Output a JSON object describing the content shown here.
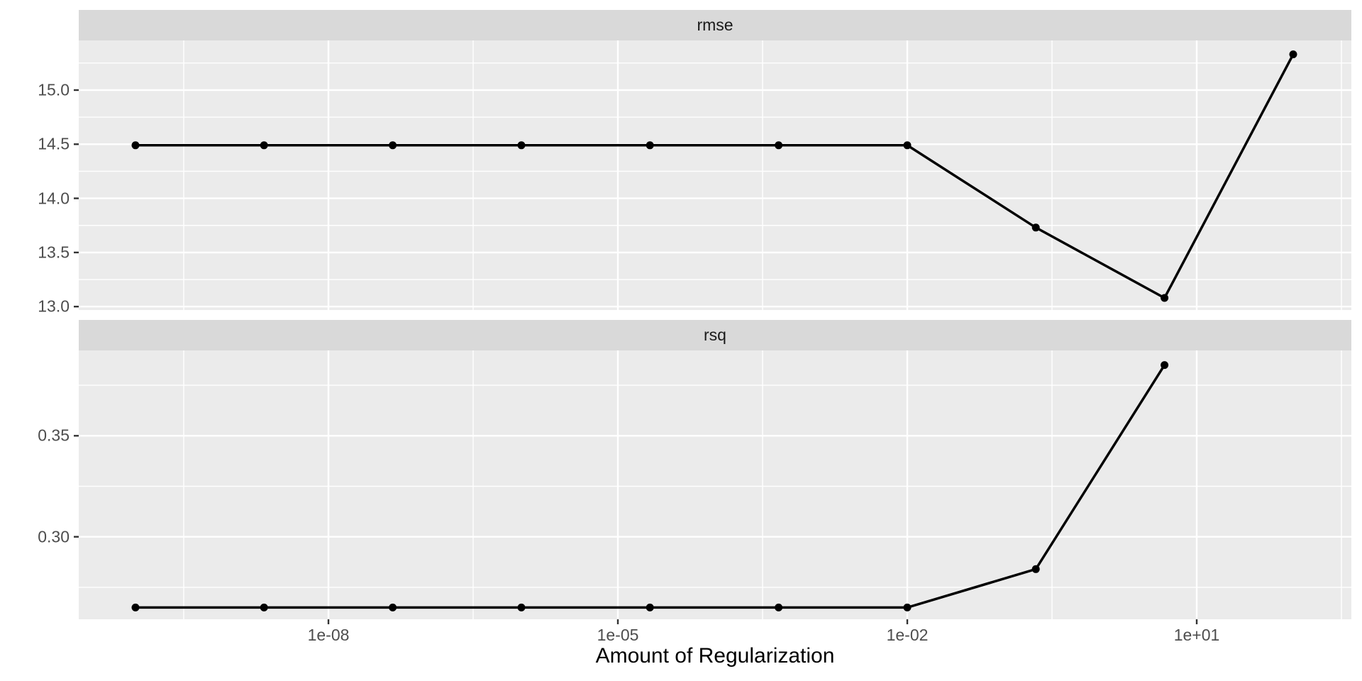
{
  "figure": {
    "kind": "ggplot2 faceted line chart",
    "background": "#FFFFFF"
  },
  "chart_data": {
    "type": "line",
    "title": "",
    "xlabel": "Amount of Regularization",
    "ylabel": "",
    "x_scale": "log10",
    "x": [
      1e-10,
      2.15e-09,
      4.64e-08,
      1e-06,
      2.15e-05,
      0.000464,
      0.01,
      0.215,
      4.64,
      100
    ],
    "x_ticks": {
      "labels": [
        "1e-08",
        "1e-05",
        "1e-02",
        "1e+01"
      ],
      "values": [
        1e-08,
        1e-05,
        0.01,
        10
      ]
    },
    "xlim_log10": [
      -10.6,
      2.6
    ],
    "facets": [
      {
        "label": "rmse",
        "values": [
          14.49,
          14.49,
          14.49,
          14.49,
          14.49,
          14.49,
          14.49,
          13.73,
          13.08,
          15.33
        ],
        "y_ticks": {
          "labels": [
            "15.0",
            "14.5",
            "14.0",
            "13.5",
            "13.0"
          ],
          "values": [
            15.0,
            14.5,
            14.0,
            13.5,
            13.0
          ]
        },
        "ylim": [
          12.97,
          15.46
        ]
      },
      {
        "label": "rsq",
        "values": [
          0.265,
          0.265,
          0.265,
          0.265,
          0.265,
          0.265,
          0.265,
          0.284,
          0.385,
          null
        ],
        "y_ticks": {
          "labels": [
            "0.35",
            "0.30"
          ],
          "values": [
            0.35,
            0.3
          ]
        },
        "ylim": [
          0.259,
          0.391
        ]
      }
    ],
    "legend_position": "none",
    "grid": "white major and minor gridlines on grey panels",
    "colors": {
      "panel_bg": "#EBEBEB",
      "strip_bg": "#D9D9D9",
      "grid": "#FFFFFF",
      "series": "#000000",
      "point": "#000000",
      "axis_text": "#4D4D4D",
      "strip_text": "#1A1A1A",
      "axis_title": "#000000",
      "tick_mark": "#333333"
    }
  }
}
